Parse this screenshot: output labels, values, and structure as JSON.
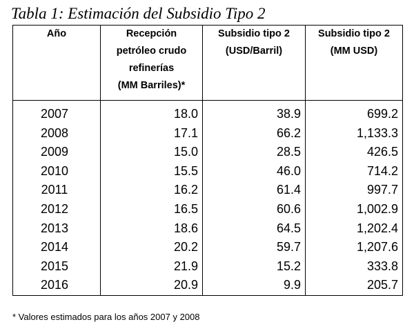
{
  "caption": "Tabla 1: Estimación del Subsidio Tipo 2",
  "table": {
    "headers": [
      [
        "Año"
      ],
      [
        "Recepción",
        "petróleo crudo",
        "refinerías",
        "(MM Barriles)*"
      ],
      [
        "Subsidio tipo 2",
        "(USD/Barril)"
      ],
      [
        "Subsidio tipo 2",
        "(MM USD)"
      ]
    ],
    "rows": [
      [
        "2007",
        "18.0",
        "38.9",
        "699.2"
      ],
      [
        "2008",
        "17.1",
        "66.2",
        "1,133.3"
      ],
      [
        "2009",
        "15.0",
        "28.5",
        "426.5"
      ],
      [
        "2010",
        "15.5",
        "46.0",
        "714.2"
      ],
      [
        "2011",
        "16.2",
        "61.4",
        "997.7"
      ],
      [
        "2012",
        "16.5",
        "60.6",
        "1,002.9"
      ],
      [
        "2013",
        "18.6",
        "64.5",
        "1,202.4"
      ],
      [
        "2014",
        "20.2",
        "59.7",
        "1,207.6"
      ],
      [
        "2015",
        "21.9",
        "15.2",
        "333.8"
      ],
      [
        "2016",
        "20.9",
        "9.9",
        "205.7"
      ]
    ]
  },
  "footnote": "* Valores estimados para los años 2007 y 2008"
}
